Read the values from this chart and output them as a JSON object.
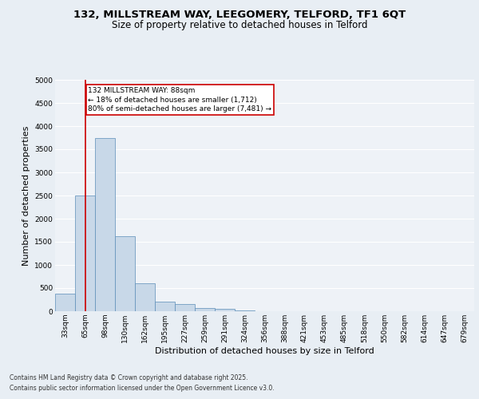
{
  "title1": "132, MILLSTREAM WAY, LEEGOMERY, TELFORD, TF1 6QT",
  "title2": "Size of property relative to detached houses in Telford",
  "xlabel": "Distribution of detached houses by size in Telford",
  "ylabel": "Number of detached properties",
  "footnote1": "Contains HM Land Registry data © Crown copyright and database right 2025.",
  "footnote2": "Contains public sector information licensed under the Open Government Licence v3.0.",
  "bins": [
    "33sqm",
    "65sqm",
    "98sqm",
    "130sqm",
    "162sqm",
    "195sqm",
    "227sqm",
    "259sqm",
    "291sqm",
    "324sqm",
    "356sqm",
    "388sqm",
    "421sqm",
    "453sqm",
    "485sqm",
    "518sqm",
    "550sqm",
    "582sqm",
    "614sqm",
    "647sqm",
    "679sqm"
  ],
  "values": [
    375,
    2500,
    3750,
    1625,
    600,
    200,
    150,
    75,
    50,
    10,
    5,
    2,
    1,
    1,
    0,
    0,
    0,
    0,
    0,
    0,
    0
  ],
  "bar_color": "#c8d8e8",
  "bar_edge_color": "#5b8db8",
  "vline_x": 1,
  "vline_color": "#cc0000",
  "annotation_text": "132 MILLSTREAM WAY: 88sqm\n← 18% of detached houses are smaller (1,712)\n80% of semi-detached houses are larger (7,481) →",
  "annotation_box_color": "#ffffff",
  "annotation_box_edge": "#cc0000",
  "ylim": [
    0,
    5000
  ],
  "yticks": [
    0,
    500,
    1000,
    1500,
    2000,
    2500,
    3000,
    3500,
    4000,
    4500,
    5000
  ],
  "bg_color": "#e8eef4",
  "plot_bg_color": "#eef2f7",
  "grid_color": "#ffffff",
  "title1_fontsize": 9.5,
  "title2_fontsize": 8.5,
  "annot_fontsize": 6.5,
  "axis_label_fontsize": 8,
  "tick_fontsize": 6.5,
  "footnote_fontsize": 5.5
}
